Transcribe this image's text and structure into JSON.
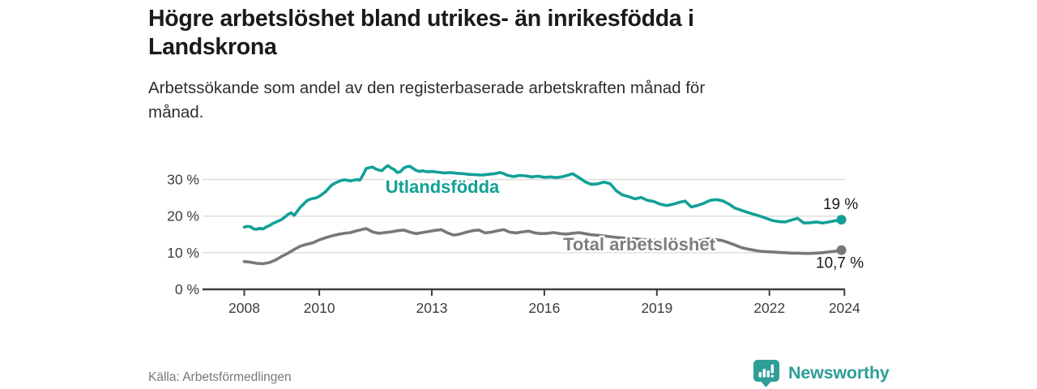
{
  "header": {
    "title": "Högre arbetslöshet bland utrikes- än inrikesfödda i\nLandskrona",
    "subtitle": "Arbetssökande som andel av den registerbaserade arbetskraften månad för\nmånad."
  },
  "chart_data": {
    "type": "line",
    "title": "Högre arbetslöshet bland utrikes- än inrikesfödda i Landskrona",
    "subtitle": "Arbetssökande som andel av den registerbaserade arbetskraften månad för månad.",
    "xlabel": "",
    "ylabel": "%",
    "x_unit": "year (monthly observations)",
    "xlim": [
      2007.6,
      2024.4
    ],
    "ylim": [
      0,
      35
    ],
    "grid": "horizontal",
    "legend": "inline-labels",
    "yticks": [
      0,
      10,
      20,
      30
    ],
    "ytick_labels": [
      "0 %",
      "10 %",
      "20 %",
      "30 %"
    ],
    "xticks": [
      2008,
      2010,
      2013,
      2016,
      2019,
      2022,
      2024
    ],
    "xtick_labels": [
      "2008",
      "2010",
      "2013",
      "2016",
      "2019",
      "2022",
      "2024"
    ],
    "series": [
      {
        "id": "utlandsfodda",
        "name": "Utlandsfödda",
        "color": "#12a096",
        "label_color": "#12a096",
        "end_label": "19 %",
        "end_value": 19,
        "points": [
          [
            2008.0,
            17.0
          ],
          [
            2008.08,
            17.2
          ],
          [
            2008.17,
            17.1
          ],
          [
            2008.25,
            16.5
          ],
          [
            2008.33,
            16.4
          ],
          [
            2008.42,
            16.7
          ],
          [
            2008.5,
            16.5
          ],
          [
            2008.58,
            17.0
          ],
          [
            2008.67,
            17.4
          ],
          [
            2008.75,
            17.9
          ],
          [
            2008.83,
            18.3
          ],
          [
            2008.92,
            18.7
          ],
          [
            2009.0,
            19.1
          ],
          [
            2009.08,
            19.7
          ],
          [
            2009.17,
            20.5
          ],
          [
            2009.25,
            20.9
          ],
          [
            2009.33,
            20.2
          ],
          [
            2009.42,
            21.4
          ],
          [
            2009.5,
            22.5
          ],
          [
            2009.58,
            23.3
          ],
          [
            2009.67,
            24.2
          ],
          [
            2009.75,
            24.6
          ],
          [
            2009.83,
            24.8
          ],
          [
            2009.92,
            25.0
          ],
          [
            2010.0,
            25.4
          ],
          [
            2010.08,
            26.0
          ],
          [
            2010.17,
            26.7
          ],
          [
            2010.25,
            27.6
          ],
          [
            2010.33,
            28.5
          ],
          [
            2010.42,
            29.0
          ],
          [
            2010.5,
            29.4
          ],
          [
            2010.58,
            29.7
          ],
          [
            2010.67,
            29.9
          ],
          [
            2010.75,
            29.8
          ],
          [
            2010.83,
            29.6
          ],
          [
            2010.92,
            29.8
          ],
          [
            2011.0,
            30.0
          ],
          [
            2011.08,
            29.8
          ],
          [
            2011.17,
            31.3
          ],
          [
            2011.25,
            33.0
          ],
          [
            2011.33,
            33.2
          ],
          [
            2011.42,
            33.4
          ],
          [
            2011.5,
            32.9
          ],
          [
            2011.58,
            32.6
          ],
          [
            2011.67,
            32.4
          ],
          [
            2011.75,
            33.2
          ],
          [
            2011.83,
            33.8
          ],
          [
            2011.92,
            33.1
          ],
          [
            2012.0,
            32.7
          ],
          [
            2012.08,
            31.9
          ],
          [
            2012.17,
            32.2
          ],
          [
            2012.25,
            33.1
          ],
          [
            2012.33,
            33.5
          ],
          [
            2012.42,
            33.6
          ],
          [
            2012.5,
            33.0
          ],
          [
            2012.58,
            32.5
          ],
          [
            2012.67,
            32.2
          ],
          [
            2012.75,
            32.4
          ],
          [
            2012.83,
            32.2
          ],
          [
            2012.92,
            32.1
          ],
          [
            2013.0,
            32.2
          ],
          [
            2013.17,
            32.0
          ],
          [
            2013.33,
            31.8
          ],
          [
            2013.5,
            31.9
          ],
          [
            2013.67,
            31.7
          ],
          [
            2013.83,
            31.6
          ],
          [
            2014.0,
            31.4
          ],
          [
            2014.17,
            31.3
          ],
          [
            2014.33,
            31.2
          ],
          [
            2014.5,
            31.4
          ],
          [
            2014.67,
            31.6
          ],
          [
            2014.83,
            31.9
          ],
          [
            2014.92,
            31.6
          ],
          [
            2015.0,
            31.2
          ],
          [
            2015.17,
            30.8
          ],
          [
            2015.33,
            31.1
          ],
          [
            2015.5,
            31.0
          ],
          [
            2015.67,
            30.7
          ],
          [
            2015.83,
            30.9
          ],
          [
            2016.0,
            30.6
          ],
          [
            2016.17,
            30.7
          ],
          [
            2016.33,
            30.5
          ],
          [
            2016.5,
            30.8
          ],
          [
            2016.67,
            31.3
          ],
          [
            2016.75,
            31.6
          ],
          [
            2016.83,
            31.1
          ],
          [
            2016.92,
            30.5
          ],
          [
            2017.0,
            30.0
          ],
          [
            2017.08,
            29.4
          ],
          [
            2017.25,
            28.7
          ],
          [
            2017.42,
            28.8
          ],
          [
            2017.58,
            29.3
          ],
          [
            2017.75,
            28.9
          ],
          [
            2017.92,
            26.9
          ],
          [
            2018.08,
            25.8
          ],
          [
            2018.25,
            25.3
          ],
          [
            2018.42,
            24.7
          ],
          [
            2018.58,
            25.1
          ],
          [
            2018.75,
            24.3
          ],
          [
            2018.92,
            24.0
          ],
          [
            2019.08,
            23.3
          ],
          [
            2019.25,
            22.9
          ],
          [
            2019.42,
            23.2
          ],
          [
            2019.58,
            23.7
          ],
          [
            2019.75,
            24.1
          ],
          [
            2019.92,
            22.5
          ],
          [
            2020.08,
            22.9
          ],
          [
            2020.25,
            23.5
          ],
          [
            2020.42,
            24.3
          ],
          [
            2020.58,
            24.5
          ],
          [
            2020.75,
            24.2
          ],
          [
            2020.92,
            23.3
          ],
          [
            2021.08,
            22.2
          ],
          [
            2021.25,
            21.6
          ],
          [
            2021.42,
            21.0
          ],
          [
            2021.58,
            20.5
          ],
          [
            2021.75,
            20.0
          ],
          [
            2021.92,
            19.4
          ],
          [
            2022.08,
            18.8
          ],
          [
            2022.25,
            18.5
          ],
          [
            2022.42,
            18.4
          ],
          [
            2022.58,
            18.9
          ],
          [
            2022.75,
            19.4
          ],
          [
            2022.92,
            18.1
          ],
          [
            2023.08,
            18.2
          ],
          [
            2023.25,
            18.4
          ],
          [
            2023.42,
            18.1
          ],
          [
            2023.58,
            18.4
          ],
          [
            2023.75,
            18.7
          ],
          [
            2023.92,
            19.0
          ]
        ]
      },
      {
        "id": "total",
        "name": "Total arbetslöshet",
        "color": "#787878",
        "label_color": "#7e7e7e",
        "end_label": "10,7 %",
        "end_value": 10.7,
        "points": [
          [
            2008.0,
            7.6
          ],
          [
            2008.17,
            7.4
          ],
          [
            2008.33,
            7.1
          ],
          [
            2008.5,
            7.0
          ],
          [
            2008.67,
            7.3
          ],
          [
            2008.83,
            8.0
          ],
          [
            2009.0,
            9.0
          ],
          [
            2009.17,
            9.9
          ],
          [
            2009.33,
            10.9
          ],
          [
            2009.5,
            11.8
          ],
          [
            2009.67,
            12.3
          ],
          [
            2009.83,
            12.7
          ],
          [
            2010.0,
            13.5
          ],
          [
            2010.17,
            14.1
          ],
          [
            2010.33,
            14.6
          ],
          [
            2010.5,
            15.0
          ],
          [
            2010.67,
            15.3
          ],
          [
            2010.83,
            15.5
          ],
          [
            2011.0,
            16.0
          ],
          [
            2011.17,
            16.4
          ],
          [
            2011.25,
            16.6
          ],
          [
            2011.42,
            15.7
          ],
          [
            2011.58,
            15.3
          ],
          [
            2011.75,
            15.5
          ],
          [
            2011.92,
            15.7
          ],
          [
            2012.08,
            16.0
          ],
          [
            2012.25,
            16.2
          ],
          [
            2012.42,
            15.6
          ],
          [
            2012.58,
            15.2
          ],
          [
            2012.75,
            15.5
          ],
          [
            2012.92,
            15.8
          ],
          [
            2013.08,
            16.1
          ],
          [
            2013.25,
            16.3
          ],
          [
            2013.42,
            15.4
          ],
          [
            2013.58,
            14.8
          ],
          [
            2013.75,
            15.1
          ],
          [
            2013.92,
            15.6
          ],
          [
            2014.08,
            16.0
          ],
          [
            2014.25,
            16.2
          ],
          [
            2014.42,
            15.4
          ],
          [
            2014.58,
            15.6
          ],
          [
            2014.75,
            16.0
          ],
          [
            2014.92,
            16.3
          ],
          [
            2015.08,
            15.6
          ],
          [
            2015.25,
            15.4
          ],
          [
            2015.42,
            15.7
          ],
          [
            2015.58,
            15.9
          ],
          [
            2015.75,
            15.4
          ],
          [
            2015.92,
            15.2
          ],
          [
            2016.08,
            15.3
          ],
          [
            2016.25,
            15.5
          ],
          [
            2016.42,
            15.2
          ],
          [
            2016.58,
            15.1
          ],
          [
            2016.75,
            15.3
          ],
          [
            2016.92,
            15.5
          ],
          [
            2017.08,
            15.2
          ],
          [
            2017.25,
            14.9
          ],
          [
            2017.5,
            14.7
          ],
          [
            2017.75,
            14.4
          ],
          [
            2018.0,
            14.1
          ],
          [
            2018.25,
            13.9
          ],
          [
            2018.5,
            13.7
          ],
          [
            2018.75,
            13.5
          ],
          [
            2019.0,
            13.4
          ],
          [
            2019.25,
            13.2
          ],
          [
            2019.5,
            13.1
          ],
          [
            2019.75,
            13.0
          ],
          [
            2019.92,
            12.9
          ],
          [
            2020.17,
            13.4
          ],
          [
            2020.42,
            13.9
          ],
          [
            2020.58,
            13.6
          ],
          [
            2020.75,
            13.3
          ],
          [
            2020.92,
            12.7
          ],
          [
            2021.08,
            12.1
          ],
          [
            2021.25,
            11.4
          ],
          [
            2021.42,
            11.0
          ],
          [
            2021.58,
            10.7
          ],
          [
            2021.75,
            10.4
          ],
          [
            2021.92,
            10.3
          ],
          [
            2022.08,
            10.2
          ],
          [
            2022.25,
            10.1
          ],
          [
            2022.42,
            10.0
          ],
          [
            2022.58,
            9.9
          ],
          [
            2022.75,
            9.9
          ],
          [
            2022.92,
            9.8
          ],
          [
            2023.08,
            9.8
          ],
          [
            2023.25,
            9.9
          ],
          [
            2023.42,
            10.0
          ],
          [
            2023.58,
            10.2
          ],
          [
            2023.75,
            10.4
          ],
          [
            2023.92,
            10.7
          ]
        ]
      }
    ]
  },
  "footer": {
    "source": "Källa: Arbetsförmedlingen",
    "brand": "Newsworthy",
    "brand_color": "#2e9e96",
    "logo_icon": "speech-bubble-bar-chart-icon"
  }
}
